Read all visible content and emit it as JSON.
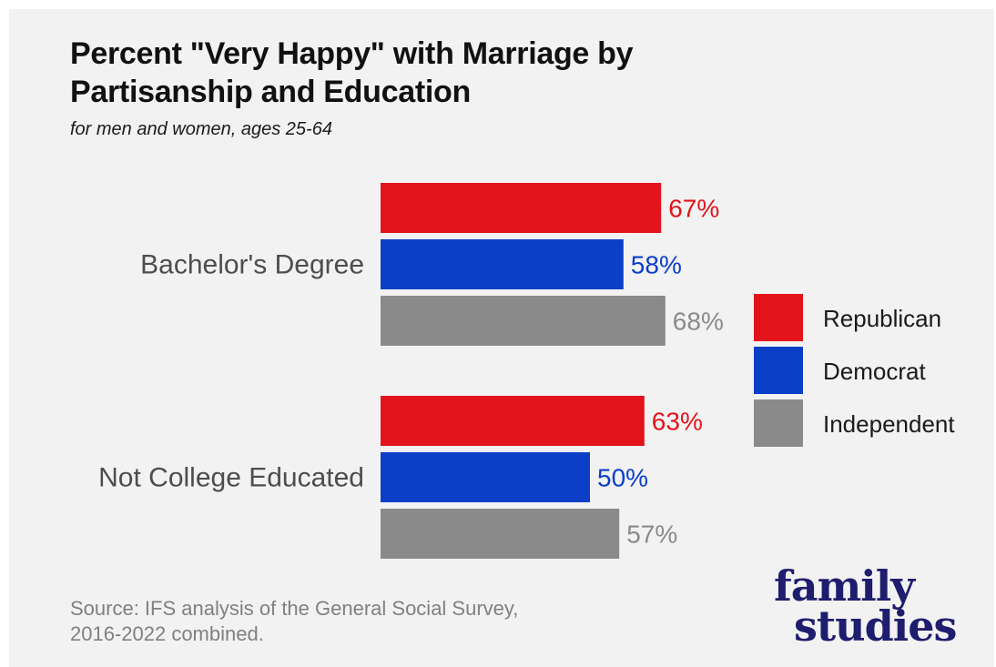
{
  "title_lines": [
    "Percent \"Very Happy\" with Marriage by",
    "Partisanship and Education"
  ],
  "subtitle": "for men and women, ages 25-64",
  "source_lines": [
    "Source: IFS analysis of the General Social Survey,",
    "2016-2022 combined."
  ],
  "logo_lines": [
    "family",
    "studies"
  ],
  "chart_data": {
    "type": "bar",
    "orientation": "horizontal",
    "categories": [
      "Bachelor's Degree",
      "Not College Educated"
    ],
    "series": [
      {
        "name": "Republican",
        "color": "#e3131b",
        "label_color": "#e3131b",
        "values": [
          67,
          63
        ],
        "labels": [
          "67%",
          "63%"
        ]
      },
      {
        "name": "Democrat",
        "color": "#0b3fc7",
        "label_color": "#0b3fc7",
        "values": [
          58,
          50
        ],
        "labels": [
          "58%",
          "50%"
        ]
      },
      {
        "name": "Independent",
        "color": "#8a8a8a",
        "label_color": "#8a8a8a",
        "values": [
          68,
          57
        ],
        "labels": [
          "68%",
          "57%"
        ]
      }
    ],
    "value_unit": "%",
    "xlim": [
      0,
      68
    ],
    "grid": false,
    "axes_visible": false,
    "legend_position": "right"
  },
  "colors": {
    "background": "#f2f2f2",
    "title": "#111111",
    "category_text": "#4d4d4d",
    "source_text": "#808080",
    "logo": "#1f1d6e"
  }
}
